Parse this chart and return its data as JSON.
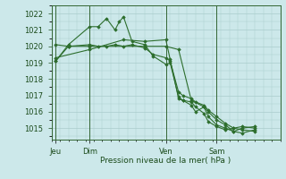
{
  "background_color": "#cce8ea",
  "grid_color": "#aacccc",
  "line_color": "#2d6e2d",
  "xlabel": "Pression niveau de la mer( hPa )",
  "ylim": [
    1014.3,
    1022.5
  ],
  "yticks": [
    1015,
    1016,
    1017,
    1018,
    1019,
    1020,
    1021,
    1022
  ],
  "day_labels": [
    "Jeu",
    "Dim",
    "Ven",
    "Sam"
  ],
  "day_positions": [
    0.5,
    4.5,
    13.5,
    19.5
  ],
  "vline_positions": [
    0.5,
    4.5,
    13.5,
    19.5
  ],
  "xlim": [
    0,
    27
  ],
  "series": [
    {
      "x": [
        0.5,
        2.0,
        4.5,
        5.5,
        6.5,
        7.5,
        8.0,
        8.5,
        9.5,
        11.0,
        12.0,
        13.5,
        14.0,
        15.0,
        15.5,
        16.5,
        17.0,
        18.0,
        18.5,
        19.5,
        20.5,
        21.5,
        22.5,
        24.0
      ],
      "y": [
        1019.1,
        1020.1,
        1021.2,
        1021.2,
        1021.7,
        1021.0,
        1021.5,
        1021.8,
        1020.3,
        1020.1,
        1019.4,
        1018.9,
        1019.0,
        1016.9,
        1016.7,
        1016.6,
        1016.3,
        1015.9,
        1015.4,
        1015.1,
        1014.9,
        1015.0,
        1015.1,
        1015.0
      ]
    },
    {
      "x": [
        0.5,
        2.0,
        4.5,
        5.5,
        6.5,
        7.5,
        8.5,
        9.5,
        11.0,
        12.0,
        13.5,
        14.0,
        15.0,
        15.5,
        16.5,
        17.0,
        18.0,
        18.5,
        19.5,
        20.5,
        21.5,
        22.5,
        24.0
      ],
      "y": [
        1020.1,
        1020.0,
        1020.1,
        1020.0,
        1020.0,
        1020.1,
        1020.0,
        1020.1,
        1019.9,
        1019.5,
        1019.3,
        1019.1,
        1017.2,
        1017.0,
        1016.8,
        1016.6,
        1016.4,
        1016.1,
        1015.7,
        1015.3,
        1015.0,
        1014.9,
        1014.8
      ]
    },
    {
      "x": [
        0.5,
        4.5,
        8.5,
        11.0,
        13.5,
        14.0,
        15.0,
        15.5,
        16.5,
        17.0,
        18.0,
        18.5,
        19.5,
        20.5,
        21.5,
        22.5,
        24.0
      ],
      "y": [
        1019.3,
        1019.8,
        1020.4,
        1020.3,
        1020.4,
        1019.2,
        1016.8,
        1016.7,
        1016.4,
        1016.0,
        1016.3,
        1015.7,
        1015.2,
        1015.0,
        1014.8,
        1015.0,
        1015.1
      ]
    },
    {
      "x": [
        0.5,
        2.0,
        4.5,
        11.0,
        13.5,
        15.0,
        16.5,
        18.0,
        18.5,
        19.5,
        20.5,
        21.5,
        22.5,
        24.0
      ],
      "y": [
        1019.1,
        1020.0,
        1020.0,
        1020.0,
        1020.0,
        1019.8,
        1016.7,
        1016.3,
        1016.0,
        1015.5,
        1015.2,
        1014.8,
        1014.7,
        1014.9
      ]
    }
  ]
}
